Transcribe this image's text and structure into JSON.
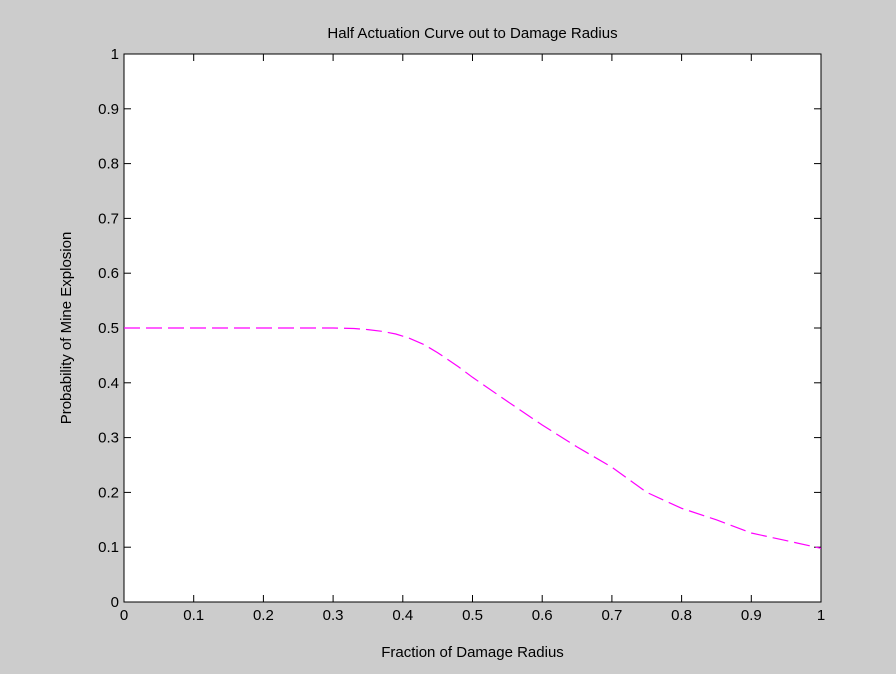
{
  "chart_data": {
    "type": "line",
    "title": "Half Actuation Curve out to Damage Radius",
    "xlabel": "Fraction of Damage Radius",
    "ylabel": "Probability of Mine Explosion",
    "xlim": [
      0,
      1
    ],
    "ylim": [
      0,
      1
    ],
    "xticks": [
      "0",
      "0.1",
      "0.2",
      "0.3",
      "0.4",
      "0.5",
      "0.6",
      "0.7",
      "0.8",
      "0.9",
      "1"
    ],
    "yticks": [
      "0",
      "0.1",
      "0.2",
      "0.3",
      "0.4",
      "0.5",
      "0.6",
      "0.7",
      "0.8",
      "0.9",
      "1"
    ],
    "grid": false,
    "series": [
      {
        "color": "#ff00ff",
        "line_style": "dashed",
        "x": [
          0,
          0.05,
          0.1,
          0.15,
          0.2,
          0.25,
          0.3,
          0.33,
          0.35,
          0.37,
          0.39,
          0.41,
          0.43,
          0.45,
          0.48,
          0.5,
          0.55,
          0.6,
          0.65,
          0.7,
          0.75,
          0.8,
          0.85,
          0.9,
          0.95,
          1.0
        ],
        "y": [
          0.5,
          0.5,
          0.5,
          0.5,
          0.5,
          0.5,
          0.5,
          0.499,
          0.497,
          0.494,
          0.489,
          0.481,
          0.47,
          0.455,
          0.429,
          0.41,
          0.366,
          0.323,
          0.283,
          0.246,
          0.2,
          0.171,
          0.15,
          0.126,
          0.112,
          0.098
        ]
      }
    ]
  }
}
